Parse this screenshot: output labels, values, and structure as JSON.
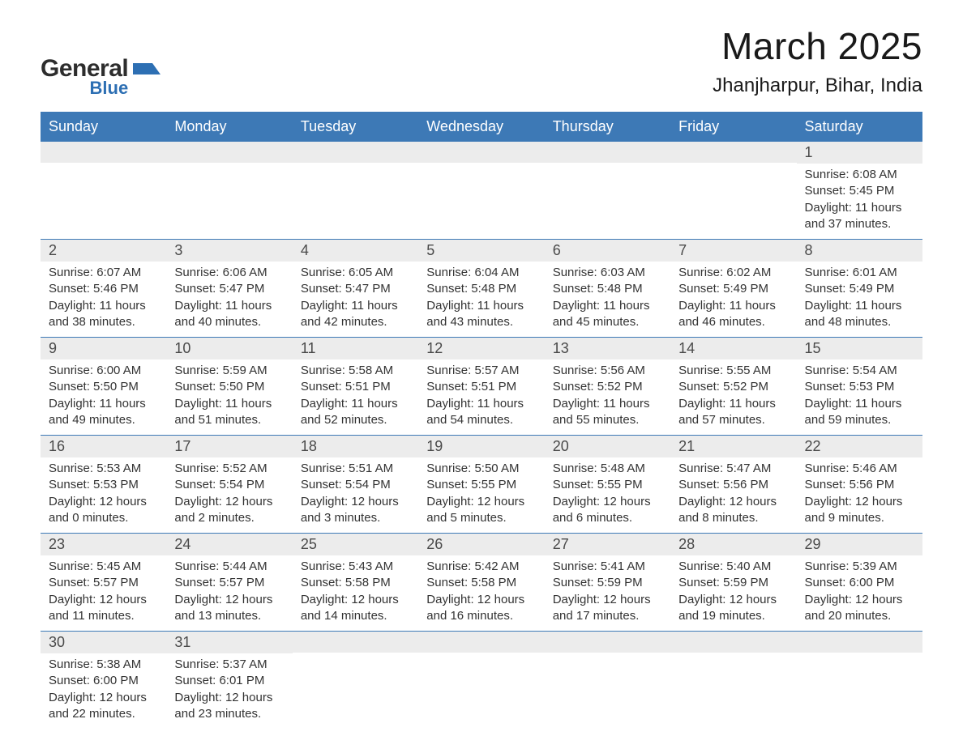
{
  "logo": {
    "general": "General",
    "blue": "Blue",
    "accent_color": "#2d6fb3"
  },
  "title": {
    "month": "March 2025",
    "location": "Jhanjharpur, Bihar, India"
  },
  "calendar": {
    "header_bg": "#3d79b6",
    "band_bg": "#ececec",
    "row_border": "#3d79b6",
    "text_color": "#333333",
    "head_fontsize": 18,
    "daynum_fontsize": 18,
    "body_fontsize": 15,
    "columns": [
      "Sunday",
      "Monday",
      "Tuesday",
      "Wednesday",
      "Thursday",
      "Friday",
      "Saturday"
    ],
    "weeks": [
      [
        null,
        null,
        null,
        null,
        null,
        null,
        {
          "n": "1",
          "sunrise": "6:08 AM",
          "sunset": "5:45 PM",
          "day_h": 11,
          "day_m": 37
        }
      ],
      [
        {
          "n": "2",
          "sunrise": "6:07 AM",
          "sunset": "5:46 PM",
          "day_h": 11,
          "day_m": 38
        },
        {
          "n": "3",
          "sunrise": "6:06 AM",
          "sunset": "5:47 PM",
          "day_h": 11,
          "day_m": 40
        },
        {
          "n": "4",
          "sunrise": "6:05 AM",
          "sunset": "5:47 PM",
          "day_h": 11,
          "day_m": 42
        },
        {
          "n": "5",
          "sunrise": "6:04 AM",
          "sunset": "5:48 PM",
          "day_h": 11,
          "day_m": 43
        },
        {
          "n": "6",
          "sunrise": "6:03 AM",
          "sunset": "5:48 PM",
          "day_h": 11,
          "day_m": 45
        },
        {
          "n": "7",
          "sunrise": "6:02 AM",
          "sunset": "5:49 PM",
          "day_h": 11,
          "day_m": 46
        },
        {
          "n": "8",
          "sunrise": "6:01 AM",
          "sunset": "5:49 PM",
          "day_h": 11,
          "day_m": 48
        }
      ],
      [
        {
          "n": "9",
          "sunrise": "6:00 AM",
          "sunset": "5:50 PM",
          "day_h": 11,
          "day_m": 49
        },
        {
          "n": "10",
          "sunrise": "5:59 AM",
          "sunset": "5:50 PM",
          "day_h": 11,
          "day_m": 51
        },
        {
          "n": "11",
          "sunrise": "5:58 AM",
          "sunset": "5:51 PM",
          "day_h": 11,
          "day_m": 52
        },
        {
          "n": "12",
          "sunrise": "5:57 AM",
          "sunset": "5:51 PM",
          "day_h": 11,
          "day_m": 54
        },
        {
          "n": "13",
          "sunrise": "5:56 AM",
          "sunset": "5:52 PM",
          "day_h": 11,
          "day_m": 55
        },
        {
          "n": "14",
          "sunrise": "5:55 AM",
          "sunset": "5:52 PM",
          "day_h": 11,
          "day_m": 57
        },
        {
          "n": "15",
          "sunrise": "5:54 AM",
          "sunset": "5:53 PM",
          "day_h": 11,
          "day_m": 59
        }
      ],
      [
        {
          "n": "16",
          "sunrise": "5:53 AM",
          "sunset": "5:53 PM",
          "day_h": 12,
          "day_m": 0
        },
        {
          "n": "17",
          "sunrise": "5:52 AM",
          "sunset": "5:54 PM",
          "day_h": 12,
          "day_m": 2
        },
        {
          "n": "18",
          "sunrise": "5:51 AM",
          "sunset": "5:54 PM",
          "day_h": 12,
          "day_m": 3
        },
        {
          "n": "19",
          "sunrise": "5:50 AM",
          "sunset": "5:55 PM",
          "day_h": 12,
          "day_m": 5
        },
        {
          "n": "20",
          "sunrise": "5:48 AM",
          "sunset": "5:55 PM",
          "day_h": 12,
          "day_m": 6
        },
        {
          "n": "21",
          "sunrise": "5:47 AM",
          "sunset": "5:56 PM",
          "day_h": 12,
          "day_m": 8
        },
        {
          "n": "22",
          "sunrise": "5:46 AM",
          "sunset": "5:56 PM",
          "day_h": 12,
          "day_m": 9
        }
      ],
      [
        {
          "n": "23",
          "sunrise": "5:45 AM",
          "sunset": "5:57 PM",
          "day_h": 12,
          "day_m": 11
        },
        {
          "n": "24",
          "sunrise": "5:44 AM",
          "sunset": "5:57 PM",
          "day_h": 12,
          "day_m": 13
        },
        {
          "n": "25",
          "sunrise": "5:43 AM",
          "sunset": "5:58 PM",
          "day_h": 12,
          "day_m": 14
        },
        {
          "n": "26",
          "sunrise": "5:42 AM",
          "sunset": "5:58 PM",
          "day_h": 12,
          "day_m": 16
        },
        {
          "n": "27",
          "sunrise": "5:41 AM",
          "sunset": "5:59 PM",
          "day_h": 12,
          "day_m": 17
        },
        {
          "n": "28",
          "sunrise": "5:40 AM",
          "sunset": "5:59 PM",
          "day_h": 12,
          "day_m": 19
        },
        {
          "n": "29",
          "sunrise": "5:39 AM",
          "sunset": "6:00 PM",
          "day_h": 12,
          "day_m": 20
        }
      ],
      [
        {
          "n": "30",
          "sunrise": "5:38 AM",
          "sunset": "6:00 PM",
          "day_h": 12,
          "day_m": 22
        },
        {
          "n": "31",
          "sunrise": "5:37 AM",
          "sunset": "6:01 PM",
          "day_h": 12,
          "day_m": 23
        },
        null,
        null,
        null,
        null,
        null
      ]
    ],
    "labels": {
      "sunrise_prefix": "Sunrise: ",
      "sunset_prefix": "Sunset: ",
      "daylight_prefix": "Daylight: ",
      "hours_word": " hours",
      "and_word": "and ",
      "minutes_word": " minutes."
    }
  }
}
